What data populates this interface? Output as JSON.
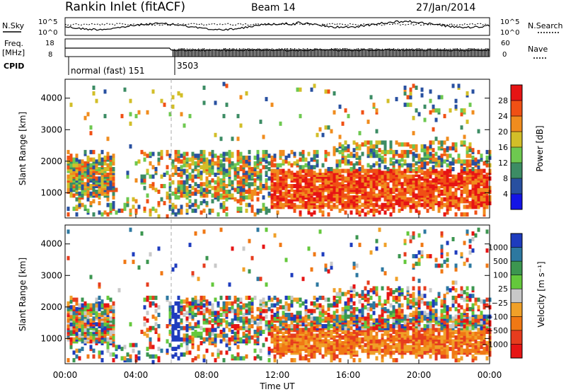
{
  "header": {
    "title": "Rankin Inlet (fitACF)",
    "beam": "Beam 14",
    "date": "27/Jan/2014"
  },
  "strip_labels": {
    "nsky": "N.Sky",
    "freq": "Freq.",
    "freq_unit": "[MHz]",
    "cpid": "CPID",
    "nsearch": "N.Search",
    "nave": "Nave",
    "nsky_ticks": [
      "10^5",
      "10^0"
    ],
    "freq_ticks": [
      "18",
      "8"
    ],
    "nave_ticks": [
      "60",
      "0"
    ]
  },
  "cpid_segments": [
    {
      "label": "normal (fast) 151",
      "start_hour": 0
    },
    {
      "label": "3503",
      "start_hour": 6
    }
  ],
  "chart_data": [
    {
      "type": "heatmap",
      "name": "power",
      "ylabel": "Slant Range [km]",
      "xlabel": "",
      "x_ticks": [
        "00:00",
        "04:00",
        "08:00",
        "12:00",
        "16:00",
        "20:00",
        "00:00"
      ],
      "xlim_hours": [
        0,
        24
      ],
      "ylim": [
        200,
        4600
      ],
      "y_ticks": [
        1000,
        2000,
        3000,
        4000
      ],
      "colorbar": {
        "label": "Power [dB]",
        "ticks": [
          4,
          8,
          12,
          16,
          20,
          24,
          28
        ],
        "colors": [
          "#1414e6",
          "#2850a0",
          "#3c8c64",
          "#6ec850",
          "#d2be28",
          "#f08c1e",
          "#f05014",
          "#e61414"
        ]
      }
    },
    {
      "type": "heatmap",
      "name": "velocity",
      "ylabel": "Slant Range [km]",
      "xlabel": "Time UT",
      "x_ticks": [
        "00:00",
        "04:00",
        "08:00",
        "12:00",
        "16:00",
        "20:00",
        "00:00"
      ],
      "xlim_hours": [
        0,
        24
      ],
      "ylim": [
        200,
        4600
      ],
      "y_ticks": [
        1000,
        2000,
        3000,
        4000
      ],
      "colorbar": {
        "label": "Velocity [m s⁻¹]",
        "ticks": [
          "1000",
          "500",
          "100",
          "25",
          "−25",
          "−100",
          "−500",
          "−1000"
        ],
        "colors": [
          "#1e3cbe",
          "#2d78a0",
          "#3c9650",
          "#64c83c",
          "#c8c8c8",
          "#f0a028",
          "#f07814",
          "#e63c1e",
          "#e61414"
        ]
      }
    }
  ]
}
